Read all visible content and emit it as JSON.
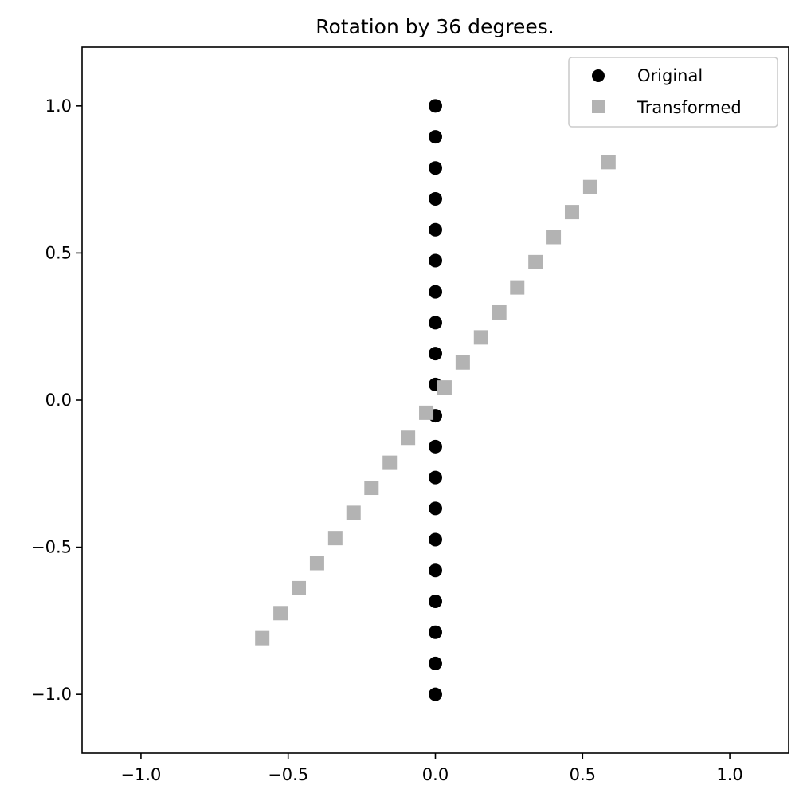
{
  "chart_data": {
    "type": "scatter",
    "title": "Rotation by 36 degrees.",
    "xlabel": "",
    "ylabel": "",
    "xlim": [
      -1.2,
      1.2
    ],
    "ylim": [
      -1.2,
      1.2
    ],
    "x_ticks": [
      -1.0,
      -0.5,
      0.0,
      0.5,
      1.0
    ],
    "y_ticks": [
      -1.0,
      -0.5,
      0.0,
      0.5,
      1.0
    ],
    "x_tick_labels": [
      "−1.0",
      "−0.5",
      "0.0",
      "0.5",
      "1.0"
    ],
    "y_tick_labels": [
      "−1.0",
      "−0.5",
      "0.0",
      "0.5",
      "1.0"
    ],
    "grid": false,
    "legend_position": "top-right",
    "series": [
      {
        "name": "Original",
        "marker": "circle",
        "color": "#000000",
        "x": [
          0,
          0,
          0,
          0,
          0,
          0,
          0,
          0,
          0,
          0,
          0,
          0,
          0,
          0,
          0,
          0,
          0,
          0,
          0,
          0
        ],
        "y": [
          -1.0,
          -0.895,
          -0.789,
          -0.684,
          -0.579,
          -0.474,
          -0.368,
          -0.263,
          -0.158,
          -0.053,
          0.053,
          0.158,
          0.263,
          0.368,
          0.474,
          0.579,
          0.684,
          0.789,
          0.895,
          1.0
        ]
      },
      {
        "name": "Transformed",
        "marker": "square",
        "color": "#b3b3b3",
        "x": [
          -0.588,
          -0.526,
          -0.464,
          -0.402,
          -0.34,
          -0.278,
          -0.217,
          -0.155,
          -0.093,
          -0.031,
          0.031,
          0.093,
          0.155,
          0.217,
          0.278,
          0.34,
          0.402,
          0.464,
          0.526,
          0.588
        ],
        "y": [
          -0.809,
          -0.724,
          -0.639,
          -0.554,
          -0.469,
          -0.383,
          -0.298,
          -0.213,
          -0.128,
          -0.043,
          0.043,
          0.128,
          0.213,
          0.298,
          0.383,
          0.469,
          0.554,
          0.639,
          0.724,
          0.809
        ]
      }
    ]
  }
}
